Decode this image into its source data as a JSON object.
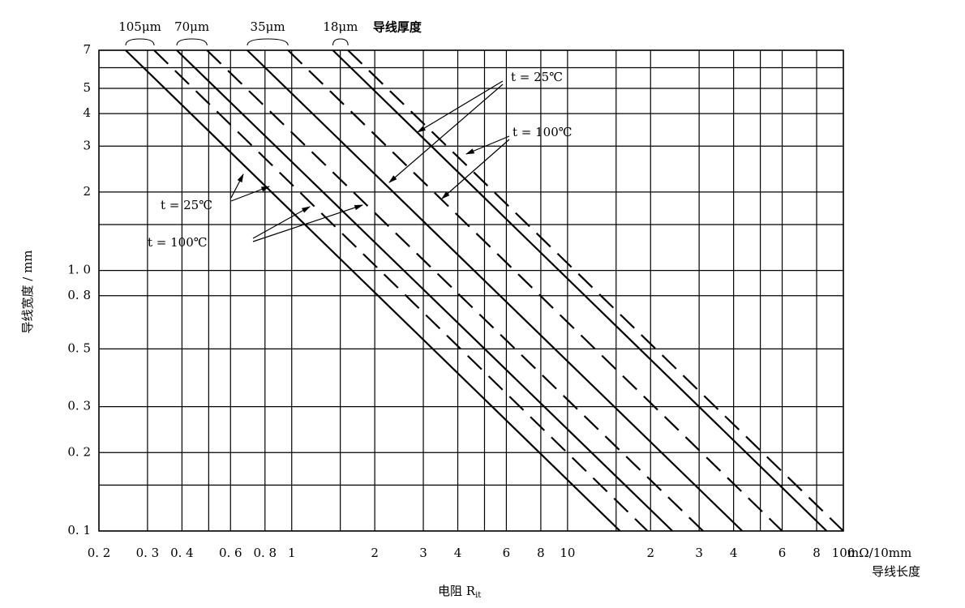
{
  "chart_data": {
    "type": "line",
    "xlabel": "电阻 R",
    "xlabel_sub": "it",
    "xunit": "mΩ/10mm",
    "xunit_title": "导线长度",
    "ylabel": "导线宽度 / mm",
    "thickness_title": "导线厚度",
    "thickness_labels": [
      "105μm",
      "70μm",
      "35μm",
      "18μm"
    ],
    "annotations": [
      "t = 25℃",
      "t = 100℃",
      "t = 25℃",
      "t = 100℃"
    ],
    "log_x": true,
    "log_y": true,
    "grid": true,
    "color": "#000000",
    "xlim": [
      0.2,
      100
    ],
    "ylim": [
      0.1,
      7
    ],
    "xticks": [
      {
        "value": 0.2,
        "label": "0. 2"
      },
      {
        "value": 0.3,
        "label": "0. 3"
      },
      {
        "value": 0.4,
        "label": "0. 4"
      },
      {
        "value": 0.6,
        "label": "0. 6"
      },
      {
        "value": 0.8,
        "label": "0. 8"
      },
      1,
      2,
      3,
      4,
      6,
      8,
      10,
      20,
      30,
      40,
      60,
      80,
      100
    ],
    "xtick_labels_second_decade": [
      "2",
      "3",
      "4",
      "6",
      "8"
    ],
    "xminor": [
      0.5,
      1.5,
      5,
      15,
      50
    ],
    "yticks": [
      {
        "value": 0.1,
        "label": "0. 1"
      },
      {
        "value": 0.2,
        "label": "0. 2"
      },
      {
        "value": 0.3,
        "label": "0. 3"
      },
      {
        "value": 0.5,
        "label": "0. 5"
      },
      {
        "value": 0.8,
        "label": "0. 8"
      },
      {
        "value": 1.0,
        "label": "1. 0"
      },
      2,
      3,
      4,
      5,
      7
    ],
    "yminor": [
      0.15,
      1.5,
      6
    ],
    "series": [
      {
        "style": "solid",
        "x": [
          0.25,
          15.5
        ],
        "values": [
          7,
          0.1
        ]
      },
      {
        "style": "dashed",
        "x": [
          0.317,
          19.5
        ],
        "values": [
          7,
          0.1
        ]
      },
      {
        "style": "solid",
        "x": [
          0.383,
          24
        ],
        "values": [
          7,
          0.1
        ]
      },
      {
        "style": "dashed",
        "x": [
          0.493,
          31
        ],
        "values": [
          7,
          0.1
        ]
      },
      {
        "style": "solid",
        "x": [
          0.69,
          43
        ],
        "values": [
          7,
          0.1
        ]
      },
      {
        "style": "dashed",
        "x": [
          0.97,
          60
        ],
        "values": [
          7,
          0.1
        ]
      },
      {
        "style": "solid",
        "x": [
          1.41,
          87
        ],
        "values": [
          7,
          0.1
        ]
      },
      {
        "style": "dashed",
        "x": [
          1.6,
          100
        ],
        "values": [
          7,
          0.1
        ]
      }
    ]
  }
}
